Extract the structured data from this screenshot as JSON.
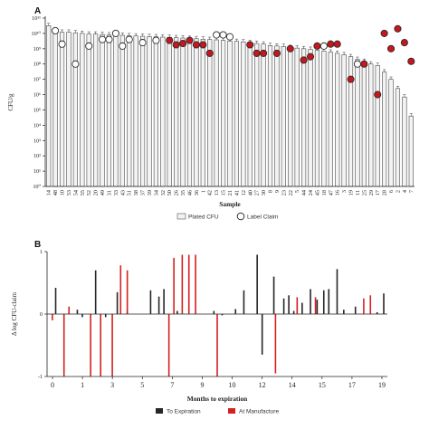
{
  "panel_a": {
    "letter": "A"
  },
  "panel_b": {
    "letter": "B"
  },
  "chart_data": [
    {
      "type": "bar",
      "title": "",
      "xlabel": "Sample",
      "ylabel": "CFU/g",
      "y_scale": "log",
      "ylim": [
        1,
        100000000000.0
      ],
      "y_tick_labels": [
        "10¹¹",
        "10¹⁰",
        "10⁹",
        "10⁸",
        "10⁷",
        "10⁶",
        "10⁵",
        "10⁴",
        "10³",
        "10²",
        "10¹",
        "10⁰"
      ],
      "categories": [
        "14",
        "48",
        "10",
        "53",
        "54",
        "55",
        "52",
        "20",
        "49",
        "31",
        "33",
        "43",
        "51",
        "38",
        "37",
        "39",
        "34",
        "32",
        "50",
        "26",
        "35",
        "46",
        "36",
        "1",
        "42",
        "13",
        "15",
        "21",
        "41",
        "12",
        "40",
        "27",
        "30",
        "8",
        "9",
        "23",
        "22",
        "5",
        "44",
        "24",
        "45",
        "18",
        "47",
        "16",
        "3",
        "19",
        "11",
        "25",
        "29",
        "17",
        "28",
        "6",
        "2",
        "4",
        "7"
      ],
      "series": [
        {
          "name": "Plated CFU",
          "kind": "bar",
          "values": [
            32000000000.0,
            16000000000.0,
            12000000000.0,
            12000000000.0,
            11000000000.0,
            10000000000.0,
            9000000000.0,
            9000000000.0,
            8500000000.0,
            8000000000.0,
            7800000000.0,
            7500000000.0,
            7000000000.0,
            6800000000.0,
            6500000000.0,
            6200000000.0,
            6000000000.0,
            5700000000.0,
            5500000000.0,
            5200000000.0,
            5000000000.0,
            4700000000.0,
            4500000000.0,
            4200000000.0,
            4000000000.0,
            3800000000.0,
            3500000000.0,
            3200000000.0,
            3000000000.0,
            2800000000.0,
            2500000000.0,
            2200000000.0,
            2000000000.0,
            1600000000.0,
            1500000000.0,
            1400000000.0,
            1200000000.0,
            1100000000.0,
            1000000000.0,
            900000000.0,
            800000000.0,
            700000000.0,
            600000000.0,
            500000000.0,
            400000000.0,
            300000000.0,
            200000000.0,
            150000000.0,
            100000000.0,
            80000000.0,
            30000000.0,
            10000000.0,
            2500000.0,
            700000.0,
            40000.0
          ]
        },
        {
          "name": "Label Claim",
          "kind": "point",
          "points": [
            {
              "i": 1,
              "y": 15000000000.0,
              "manufacture": false
            },
            {
              "i": 2,
              "y": 2000000000.0,
              "manufacture": false
            },
            {
              "i": 4,
              "y": 100000000.0,
              "manufacture": false
            },
            {
              "i": 6,
              "y": 1500000000.0,
              "manufacture": false
            },
            {
              "i": 8,
              "y": 4000000000.0,
              "manufacture": false
            },
            {
              "i": 9,
              "y": 4000000000.0,
              "manufacture": false
            },
            {
              "i": 10,
              "y": 10000000000.0,
              "manufacture": false
            },
            {
              "i": 11,
              "y": 1500000000.0,
              "manufacture": false
            },
            {
              "i": 12,
              "y": 4000000000.0,
              "manufacture": false
            },
            {
              "i": 14,
              "y": 2500000000.0,
              "manufacture": false
            },
            {
              "i": 16,
              "y": 3500000000.0,
              "manufacture": false
            },
            {
              "i": 18,
              "y": 3500000000.0,
              "manufacture": true
            },
            {
              "i": 19,
              "y": 1800000000.0,
              "manufacture": true
            },
            {
              "i": 20,
              "y": 2200000000.0,
              "manufacture": true
            },
            {
              "i": 21,
              "y": 3500000000.0,
              "manufacture": true
            },
            {
              "i": 22,
              "y": 1800000000.0,
              "manufacture": true
            },
            {
              "i": 23,
              "y": 1800000000.0,
              "manufacture": true
            },
            {
              "i": 24,
              "y": 500000000.0,
              "manufacture": true
            },
            {
              "i": 25,
              "y": 8000000000.0,
              "manufacture": false
            },
            {
              "i": 26,
              "y": 8000000000.0,
              "manufacture": false
            },
            {
              "i": 27,
              "y": 6000000000.0,
              "manufacture": false
            },
            {
              "i": 30,
              "y": 1800000000.0,
              "manufacture": true
            },
            {
              "i": 31,
              "y": 500000000.0,
              "manufacture": true
            },
            {
              "i": 32,
              "y": 500000000.0,
              "manufacture": true
            },
            {
              "i": 34,
              "y": 500000000.0,
              "manufacture": true
            },
            {
              "i": 36,
              "y": 1000000000.0,
              "manufacture": true
            },
            {
              "i": 38,
              "y": 180000000.0,
              "manufacture": true
            },
            {
              "i": 39,
              "y": 300000000.0,
              "manufacture": true
            },
            {
              "i": 40,
              "y": 1500000000.0,
              "manufacture": true
            },
            {
              "i": 41,
              "y": 1500000000.0,
              "manufacture": false
            },
            {
              "i": 42,
              "y": 2000000000.0,
              "manufacture": true
            },
            {
              "i": 43,
              "y": 2000000000.0,
              "manufacture": true
            },
            {
              "i": 45,
              "y": 10000000.0,
              "manufacture": true
            },
            {
              "i": 46,
              "y": 100000000.0,
              "manufacture": false
            },
            {
              "i": 47,
              "y": 100000000.0,
              "manufacture": true
            },
            {
              "i": 49,
              "y": 1000000.0,
              "manufacture": true
            },
            {
              "i": 50,
              "y": 10000000000.0,
              "manufacture": true
            },
            {
              "i": 51,
              "y": 1000000000.0,
              "manufacture": true
            },
            {
              "i": 52,
              "y": 20000000000.0,
              "manufacture": true
            },
            {
              "i": 53,
              "y": 2500000000.0,
              "manufacture": true
            },
            {
              "i": 54,
              "y": 150000000.0,
              "manufacture": true
            }
          ]
        }
      ],
      "legend": [
        "Plated CFU",
        "Label Claim"
      ],
      "legend_placement": "bottom"
    },
    {
      "type": "bar",
      "title": "",
      "xlabel": "Months to expiration",
      "ylabel": "Δ log CFU-claim",
      "ylim": [
        -1,
        1
      ],
      "y_tick_labels": [
        "1",
        "0",
        "-1"
      ],
      "x_tick_labels": [
        "0",
        "1",
        "3",
        "5",
        "7",
        "9",
        "10",
        "12",
        "14",
        "15",
        "17",
        "19"
      ],
      "x_range": [
        0,
        20
      ],
      "series": [
        {
          "name": "To Expiration",
          "color": "#262626",
          "points": [
            [
              0.3,
              0.42
            ],
            [
              1.6,
              0.07
            ],
            [
              1.9,
              -0.05
            ],
            [
              2.7,
              0.7
            ],
            [
              3.3,
              -0.05
            ],
            [
              4.0,
              0.35
            ],
            [
              4.6,
              0.05
            ],
            [
              6.0,
              0.38
            ],
            [
              6.5,
              0.28
            ],
            [
              6.8,
              0.4
            ],
            [
              7.6,
              0.05
            ],
            [
              9.8,
              0.05
            ],
            [
              10.3,
              -0.02
            ],
            [
              11.1,
              0.08
            ],
            [
              11.6,
              0.38
            ],
            [
              12.4,
              0.95
            ],
            [
              12.7,
              -0.65
            ],
            [
              13.4,
              0.6
            ],
            [
              14.0,
              0.25
            ],
            [
              14.3,
              0.3
            ],
            [
              14.6,
              0.05
            ],
            [
              15.1,
              0.18
            ],
            [
              15.6,
              0.4
            ],
            [
              16.0,
              0.23
            ],
            [
              16.4,
              0.38
            ],
            [
              16.7,
              0.4
            ],
            [
              17.2,
              0.72
            ],
            [
              17.6,
              0.07
            ],
            [
              18.3,
              0.12
            ],
            [
              19.6,
              0.03
            ],
            [
              20.0,
              0.33
            ]
          ]
        },
        {
          "name": "At Manufacture",
          "color": "#d42020",
          "points": [
            [
              0.1,
              -0.1
            ],
            [
              0.8,
              -1.0
            ],
            [
              1.1,
              0.12
            ],
            [
              2.4,
              -1.0
            ],
            [
              3.0,
              -1.0
            ],
            [
              3.7,
              -1.0
            ],
            [
              4.2,
              0.78
            ],
            [
              4.6,
              0.7
            ],
            [
              7.1,
              -1.0
            ],
            [
              7.4,
              0.9
            ],
            [
              7.9,
              0.95
            ],
            [
              8.3,
              0.95
            ],
            [
              8.7,
              0.95
            ],
            [
              10.0,
              -1.0
            ],
            [
              13.5,
              -0.95
            ],
            [
              14.8,
              0.27
            ],
            [
              15.9,
              0.27
            ],
            [
              18.8,
              0.25
            ],
            [
              19.2,
              0.3
            ]
          ]
        }
      ],
      "legend": [
        "To Expiration",
        "At Manufacture"
      ],
      "legend_placement": "bottom"
    }
  ]
}
